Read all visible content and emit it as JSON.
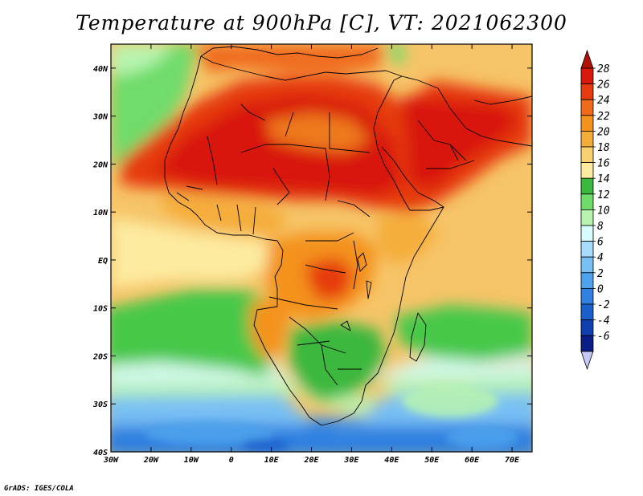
{
  "title": "Temperature at 900hPa [C], VT: 2021062300",
  "credit": "GrADS: IGES/COLA",
  "map": {
    "lon_ticks": [
      "30W",
      "20W",
      "10W",
      "0",
      "10E",
      "20E",
      "30E",
      "40E",
      "50E",
      "60E",
      "70E"
    ],
    "lat_ticks": [
      "40N",
      "30N",
      "20N",
      "10N",
      "EQ",
      "10S",
      "20S",
      "30S",
      "40S"
    ],
    "lon_range": [
      -30,
      75
    ],
    "lat_range": [
      -40,
      45
    ],
    "field_regions": [
      {
        "name": "south-ocean-cold",
        "level": 6,
        "color": "#5ea6f0"
      },
      {
        "name": "south-atlantic-cool",
        "level": 10,
        "color": "#d8fbff"
      },
      {
        "name": "atlantic-green",
        "level": 14,
        "color": "#46c84a"
      },
      {
        "name": "sahara-hot",
        "level": 28,
        "color": "#e0200c"
      },
      {
        "name": "arabia-hot",
        "level": 26,
        "color": "#ec4810"
      },
      {
        "name": "congo-warm",
        "level": 22,
        "color": "#f3a030"
      },
      {
        "name": "indian-ocean-warm",
        "level": 20,
        "color": "#f6c468"
      }
    ]
  },
  "colorbar": {
    "labels": [
      "28",
      "26",
      "24",
      "22",
      "20",
      "18",
      "16",
      "14",
      "12",
      "10",
      "8",
      "6",
      "4",
      "2",
      "0",
      "-2",
      "-4",
      "-6"
    ],
    "colors": [
      "#d8180a",
      "#e63a10",
      "#f06a1c",
      "#f4921e",
      "#f5ad3a",
      "#f9d070",
      "#fdeba0",
      "#3bb83e",
      "#6fdc6a",
      "#b8f4b0",
      "#d8fbff",
      "#a8dcfb",
      "#78bff4",
      "#4ea3ec",
      "#2f80e0",
      "#1a60cc",
      "#1040b0",
      "#0a1e86"
    ],
    "top_arrow_color": "#b01008",
    "bottom_arrow_color": "#c8c8f8"
  }
}
